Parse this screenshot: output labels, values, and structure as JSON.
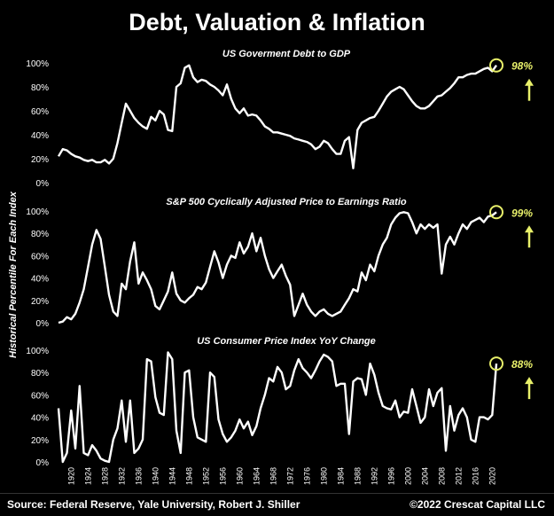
{
  "title": "Debt, Valuation & Inflation",
  "y_axis_title": "Historical Percentile For Each Index",
  "source": "Source: Federal Reserve, Yale University, Robert J. Shiller",
  "copyright": "©2022 Crescat Capital LLC",
  "colors": {
    "line": "#ffffff",
    "highlight": "#e8f06a",
    "background": "#000000"
  },
  "chart_data": [
    {
      "type": "line",
      "title": "US Goverment Debt to GDP",
      "ylim": [
        0,
        100
      ],
      "yticks": [
        "0%",
        "20%",
        "40%",
        "60%",
        "80%",
        "100%"
      ],
      "callout": "98%",
      "x": [
        1917,
        1918,
        1919,
        1920,
        1921,
        1922,
        1923,
        1924,
        1925,
        1926,
        1927,
        1928,
        1929,
        1930,
        1931,
        1932,
        1933,
        1934,
        1935,
        1936,
        1937,
        1938,
        1939,
        1940,
        1941,
        1942,
        1943,
        1944,
        1945,
        1946,
        1947,
        1948,
        1949,
        1950,
        1951,
        1952,
        1953,
        1954,
        1955,
        1956,
        1957,
        1958,
        1959,
        1960,
        1961,
        1962,
        1963,
        1964,
        1965,
        1966,
        1967,
        1968,
        1969,
        1970,
        1971,
        1972,
        1973,
        1974,
        1975,
        1976,
        1977,
        1978,
        1979,
        1980,
        1981,
        1982,
        1983,
        1984,
        1985,
        1986,
        1987,
        1988,
        1989,
        1990,
        1991,
        1992,
        1993,
        1994,
        1995,
        1996,
        1997,
        1998,
        1999,
        2000,
        2001,
        2002,
        2003,
        2004,
        2005,
        2006,
        2007,
        2008,
        2009,
        2010,
        2011,
        2012,
        2013,
        2014,
        2015,
        2016,
        2017,
        2018,
        2019,
        2020,
        2021
      ],
      "values": [
        22,
        28,
        27,
        24,
        22,
        21,
        19,
        18,
        19,
        17,
        17,
        19,
        16,
        20,
        33,
        50,
        66,
        60,
        54,
        50,
        47,
        45,
        55,
        52,
        60,
        57,
        44,
        43,
        80,
        83,
        96,
        98,
        88,
        84,
        86,
        85,
        82,
        80,
        77,
        73,
        82,
        70,
        62,
        58,
        62,
        56,
        57,
        56,
        52,
        47,
        45,
        42,
        42,
        41,
        40,
        39,
        37,
        36,
        35,
        34,
        32,
        28,
        30,
        35,
        33,
        28,
        24,
        24,
        35,
        38,
        12,
        44,
        50,
        52,
        54,
        55,
        60,
        66,
        72,
        76,
        78,
        80,
        78,
        73,
        68,
        64,
        62,
        62,
        64,
        68,
        72,
        73,
        76,
        79,
        83,
        88,
        88,
        90,
        91,
        91,
        93,
        95,
        96,
        93,
        98
      ]
    },
    {
      "type": "line",
      "title": "S&P 500 Cyclically Adjusted Price to Earnings Ratio",
      "ylim": [
        0,
        100
      ],
      "yticks": [
        "0%",
        "20%",
        "40%",
        "60%",
        "80%",
        "100%"
      ],
      "callout": "99%",
      "x": [
        1917,
        1918,
        1919,
        1920,
        1921,
        1922,
        1923,
        1924,
        1925,
        1926,
        1927,
        1928,
        1929,
        1930,
        1931,
        1932,
        1933,
        1934,
        1935,
        1936,
        1937,
        1938,
        1939,
        1940,
        1941,
        1942,
        1943,
        1944,
        1945,
        1946,
        1947,
        1948,
        1949,
        1950,
        1951,
        1952,
        1953,
        1954,
        1955,
        1956,
        1957,
        1958,
        1959,
        1960,
        1961,
        1962,
        1963,
        1964,
        1965,
        1966,
        1967,
        1968,
        1969,
        1970,
        1971,
        1972,
        1973,
        1974,
        1975,
        1976,
        1977,
        1978,
        1979,
        1980,
        1981,
        1982,
        1983,
        1984,
        1985,
        1986,
        1987,
        1988,
        1989,
        1990,
        1991,
        1992,
        1993,
        1994,
        1995,
        1996,
        1997,
        1998,
        1999,
        2000,
        2001,
        2002,
        2003,
        2004,
        2005,
        2006,
        2007,
        2008,
        2009,
        2010,
        2011,
        2012,
        2013,
        2014,
        2015,
        2016,
        2017,
        2018,
        2019,
        2020,
        2021
      ],
      "values": [
        0,
        1,
        5,
        3,
        8,
        18,
        30,
        50,
        70,
        83,
        75,
        50,
        25,
        10,
        6,
        35,
        30,
        55,
        72,
        35,
        45,
        38,
        30,
        15,
        12,
        20,
        28,
        45,
        26,
        20,
        18,
        22,
        25,
        32,
        30,
        36,
        50,
        64,
        54,
        40,
        52,
        60,
        58,
        72,
        62,
        68,
        80,
        64,
        76,
        60,
        48,
        40,
        46,
        52,
        42,
        34,
        6,
        16,
        26,
        16,
        10,
        6,
        10,
        12,
        8,
        6,
        8,
        10,
        16,
        22,
        30,
        28,
        45,
        38,
        52,
        46,
        60,
        70,
        76,
        88,
        94,
        98,
        99,
        98,
        90,
        80,
        88,
        84,
        88,
        85,
        88,
        44,
        70,
        77,
        70,
        80,
        88,
        84,
        90,
        92,
        94,
        90,
        95,
        96,
        99
      ]
    },
    {
      "type": "line",
      "title": "US Consumer Price Index YoY Change",
      "ylim": [
        0,
        100
      ],
      "yticks": [
        "0%",
        "20%",
        "40%",
        "60%",
        "80%",
        "100%"
      ],
      "callout": "88%",
      "xticks": [
        "1920",
        "1924",
        "1928",
        "1932",
        "1936",
        "1940",
        "1944",
        "1948",
        "1952",
        "1956",
        "1960",
        "1964",
        "1968",
        "1972",
        "1976",
        "1980",
        "1984",
        "1988",
        "1992",
        "1996",
        "2000",
        "2004",
        "2008",
        "2012",
        "2016",
        "2020"
      ],
      "x": [
        1917,
        1918,
        1919,
        1920,
        1921,
        1922,
        1923,
        1924,
        1925,
        1926,
        1927,
        1928,
        1929,
        1930,
        1931,
        1932,
        1933,
        1934,
        1935,
        1936,
        1937,
        1938,
        1939,
        1940,
        1941,
        1942,
        1943,
        1944,
        1945,
        1946,
        1947,
        1948,
        1949,
        1950,
        1951,
        1952,
        1953,
        1954,
        1955,
        1956,
        1957,
        1958,
        1959,
        1960,
        1961,
        1962,
        1963,
        1964,
        1965,
        1966,
        1967,
        1968,
        1969,
        1970,
        1971,
        1972,
        1973,
        1974,
        1975,
        1976,
        1977,
        1978,
        1979,
        1980,
        1981,
        1982,
        1983,
        1984,
        1985,
        1986,
        1987,
        1988,
        1989,
        1990,
        1991,
        1992,
        1993,
        1994,
        1995,
        1996,
        1997,
        1998,
        1999,
        2000,
        2001,
        2002,
        2003,
        2004,
        2005,
        2006,
        2007,
        2008,
        2009,
        2010,
        2011,
        2012,
        2013,
        2014,
        2015,
        2016,
        2017,
        2018,
        2019,
        2020,
        2021
      ],
      "values": [
        48,
        0,
        8,
        46,
        12,
        68,
        8,
        6,
        15,
        10,
        3,
        1,
        0,
        20,
        30,
        55,
        18,
        55,
        8,
        12,
        20,
        92,
        90,
        58,
        44,
        42,
        98,
        92,
        28,
        8,
        80,
        82,
        40,
        22,
        20,
        18,
        80,
        76,
        38,
        25,
        18,
        22,
        28,
        38,
        30,
        36,
        24,
        32,
        48,
        60,
        75,
        72,
        85,
        80,
        65,
        68,
        82,
        92,
        84,
        80,
        75,
        82,
        90,
        96,
        94,
        90,
        68,
        70,
        70,
        25,
        72,
        75,
        74,
        60,
        88,
        78,
        62,
        50,
        48,
        47,
        55,
        40,
        45,
        44,
        65,
        50,
        35,
        40,
        65,
        50,
        62,
        66,
        10,
        50,
        28,
        42,
        48,
        40,
        20,
        18,
        40,
        40,
        38,
        42,
        88
      ]
    }
  ]
}
